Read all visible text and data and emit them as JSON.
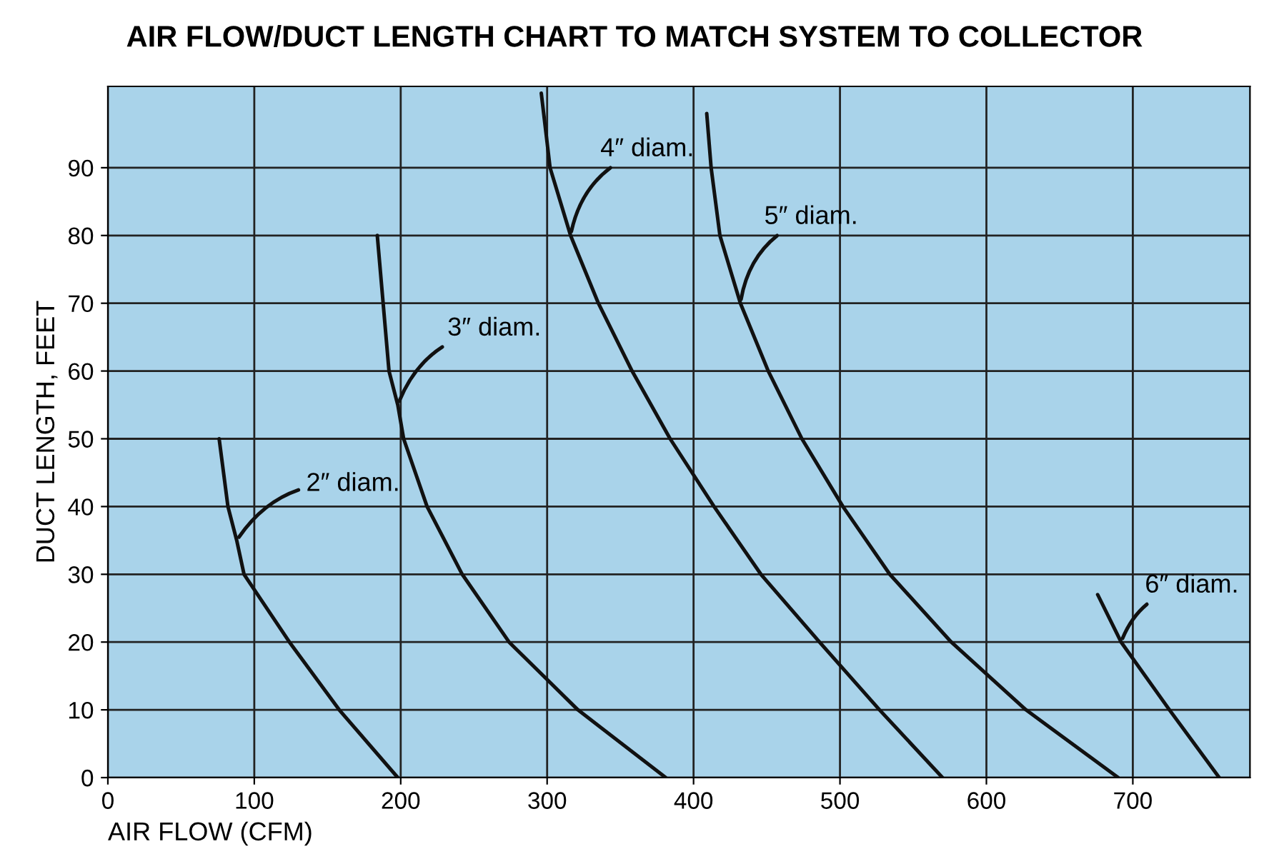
{
  "chart_data": {
    "type": "line",
    "title": "AIR FLOW/DUCT LENGTH CHART TO MATCH SYSTEM TO COLLECTOR",
    "xlabel": "AIR FLOW (CFM)",
    "ylabel": "DUCT LENGTH, FEET",
    "series": [
      {
        "color": "#111111",
        "x": [
          76,
          82,
          88,
          93,
          124,
          158,
          198
        ],
        "values": [
          50,
          40,
          35,
          30,
          20,
          10,
          0
        ]
      },
      {
        "color": "#111111",
        "x": [
          184,
          192,
          198,
          202,
          218,
          242,
          274,
          321,
          381
        ],
        "values": [
          80,
          60,
          55,
          50,
          40,
          30,
          20,
          10,
          0
        ]
      },
      {
        "color": "#111111",
        "x": [
          296,
          302,
          316,
          335,
          358,
          384,
          414,
          446,
          486,
          527,
          570
        ],
        "values": [
          101,
          90,
          80,
          70,
          60,
          50,
          40,
          30,
          20,
          10,
          0
        ]
      },
      {
        "color": "#111111",
        "x": [
          409,
          412,
          418,
          432,
          451,
          474,
          502,
          534,
          576,
          627,
          690
        ],
        "values": [
          98,
          90,
          80,
          70,
          60,
          50,
          40,
          30,
          20,
          10,
          0
        ]
      },
      {
        "color": "#111111",
        "x": [
          676,
          692,
          725,
          759
        ],
        "values": [
          27,
          20,
          10,
          0
        ]
      }
    ],
    "annotations": [
      {
        "text": "2″ diam.",
        "x": 88,
        "y": 35
      },
      {
        "text": "3″ diam.",
        "x": 198,
        "y": 55
      },
      {
        "text": "4″ diam.",
        "x": 316,
        "y": 80
      },
      {
        "text": "5″ diam.",
        "x": 432,
        "y": 70
      },
      {
        "text": "6″ diam.",
        "x": 692,
        "y": 20
      }
    ],
    "xlim": [
      0,
      780
    ],
    "ylim": [
      0,
      102
    ],
    "xticks": [
      0,
      100,
      200,
      300,
      400,
      500,
      600,
      700
    ],
    "yticks": [
      0,
      10,
      20,
      30,
      40,
      50,
      60,
      70,
      80,
      90
    ],
    "grid": true,
    "legend": false
  }
}
